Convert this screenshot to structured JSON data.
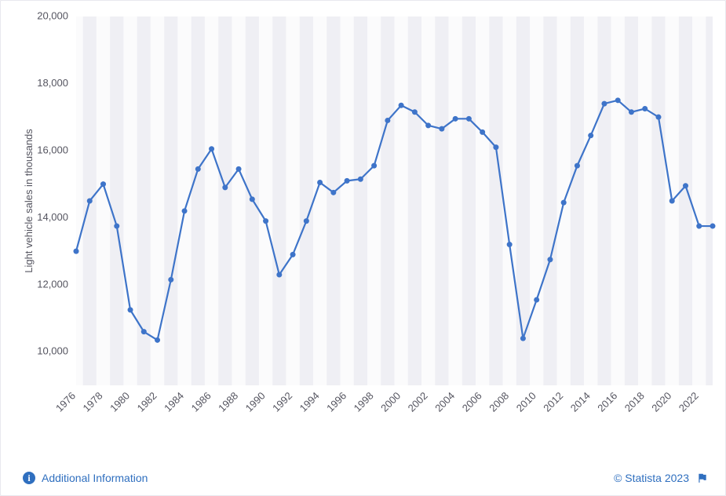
{
  "chart": {
    "type": "line",
    "y_axis_title": "Light vehicle sales in thousands",
    "label_fontsize": 13,
    "ylim": [
      9000,
      20000
    ],
    "yticks": [
      10000,
      12000,
      14000,
      16000,
      18000,
      20000
    ],
    "ytick_labels": [
      "10,000",
      "12,000",
      "14,000",
      "16,000",
      "18,000",
      "20,000"
    ],
    "xtick_labels": [
      "1976",
      "1978",
      "1980",
      "1982",
      "1984",
      "1986",
      "1988",
      "1990",
      "1992",
      "1994",
      "1996",
      "1998",
      "2000",
      "2002",
      "2004",
      "2006",
      "2008",
      "2010",
      "2012",
      "2014",
      "2016",
      "2018",
      "2020",
      "2022"
    ],
    "xtick_years": [
      1976,
      1978,
      1980,
      1982,
      1984,
      1986,
      1988,
      1990,
      1992,
      1994,
      1996,
      1998,
      2000,
      2002,
      2004,
      2006,
      2008,
      2010,
      2012,
      2014,
      2016,
      2018,
      2020,
      2022
    ],
    "years": [
      1976,
      1977,
      1978,
      1979,
      1980,
      1981,
      1982,
      1983,
      1984,
      1985,
      1986,
      1987,
      1988,
      1989,
      1990,
      1991,
      1992,
      1993,
      1994,
      1995,
      1996,
      1997,
      1998,
      1999,
      2000,
      2001,
      2002,
      2003,
      2004,
      2005,
      2006,
      2007,
      2008,
      2009,
      2010,
      2011,
      2012,
      2013,
      2014,
      2015,
      2016,
      2017,
      2018,
      2019,
      2020,
      2021,
      2022,
      2023
    ],
    "values": [
      13000,
      14500,
      15000,
      13750,
      11250,
      10600,
      10350,
      12150,
      14200,
      15450,
      16050,
      14900,
      15450,
      14550,
      13900,
      12300,
      12900,
      13900,
      15050,
      14750,
      15100,
      15150,
      15550,
      16900,
      17350,
      17150,
      16750,
      16650,
      16950,
      16950,
      16550,
      16100,
      13200,
      10400,
      11550,
      12750,
      14450,
      15550,
      16450,
      17400,
      17500,
      17150,
      17250,
      17000,
      14500,
      14950,
      13750,
      13750
    ],
    "line_color": "#3e74c9",
    "marker_color": "#3e74c9",
    "marker_radius": 3.5,
    "line_width": 2.2,
    "background_color": "#ffffff",
    "band_colors": [
      "#fbfbfc",
      "#efeff4"
    ],
    "label_color": "#555560"
  },
  "footer": {
    "info_label": "Additional Information",
    "attribution": "© Statista 2023",
    "attribution_color": "#2f6fbf"
  }
}
